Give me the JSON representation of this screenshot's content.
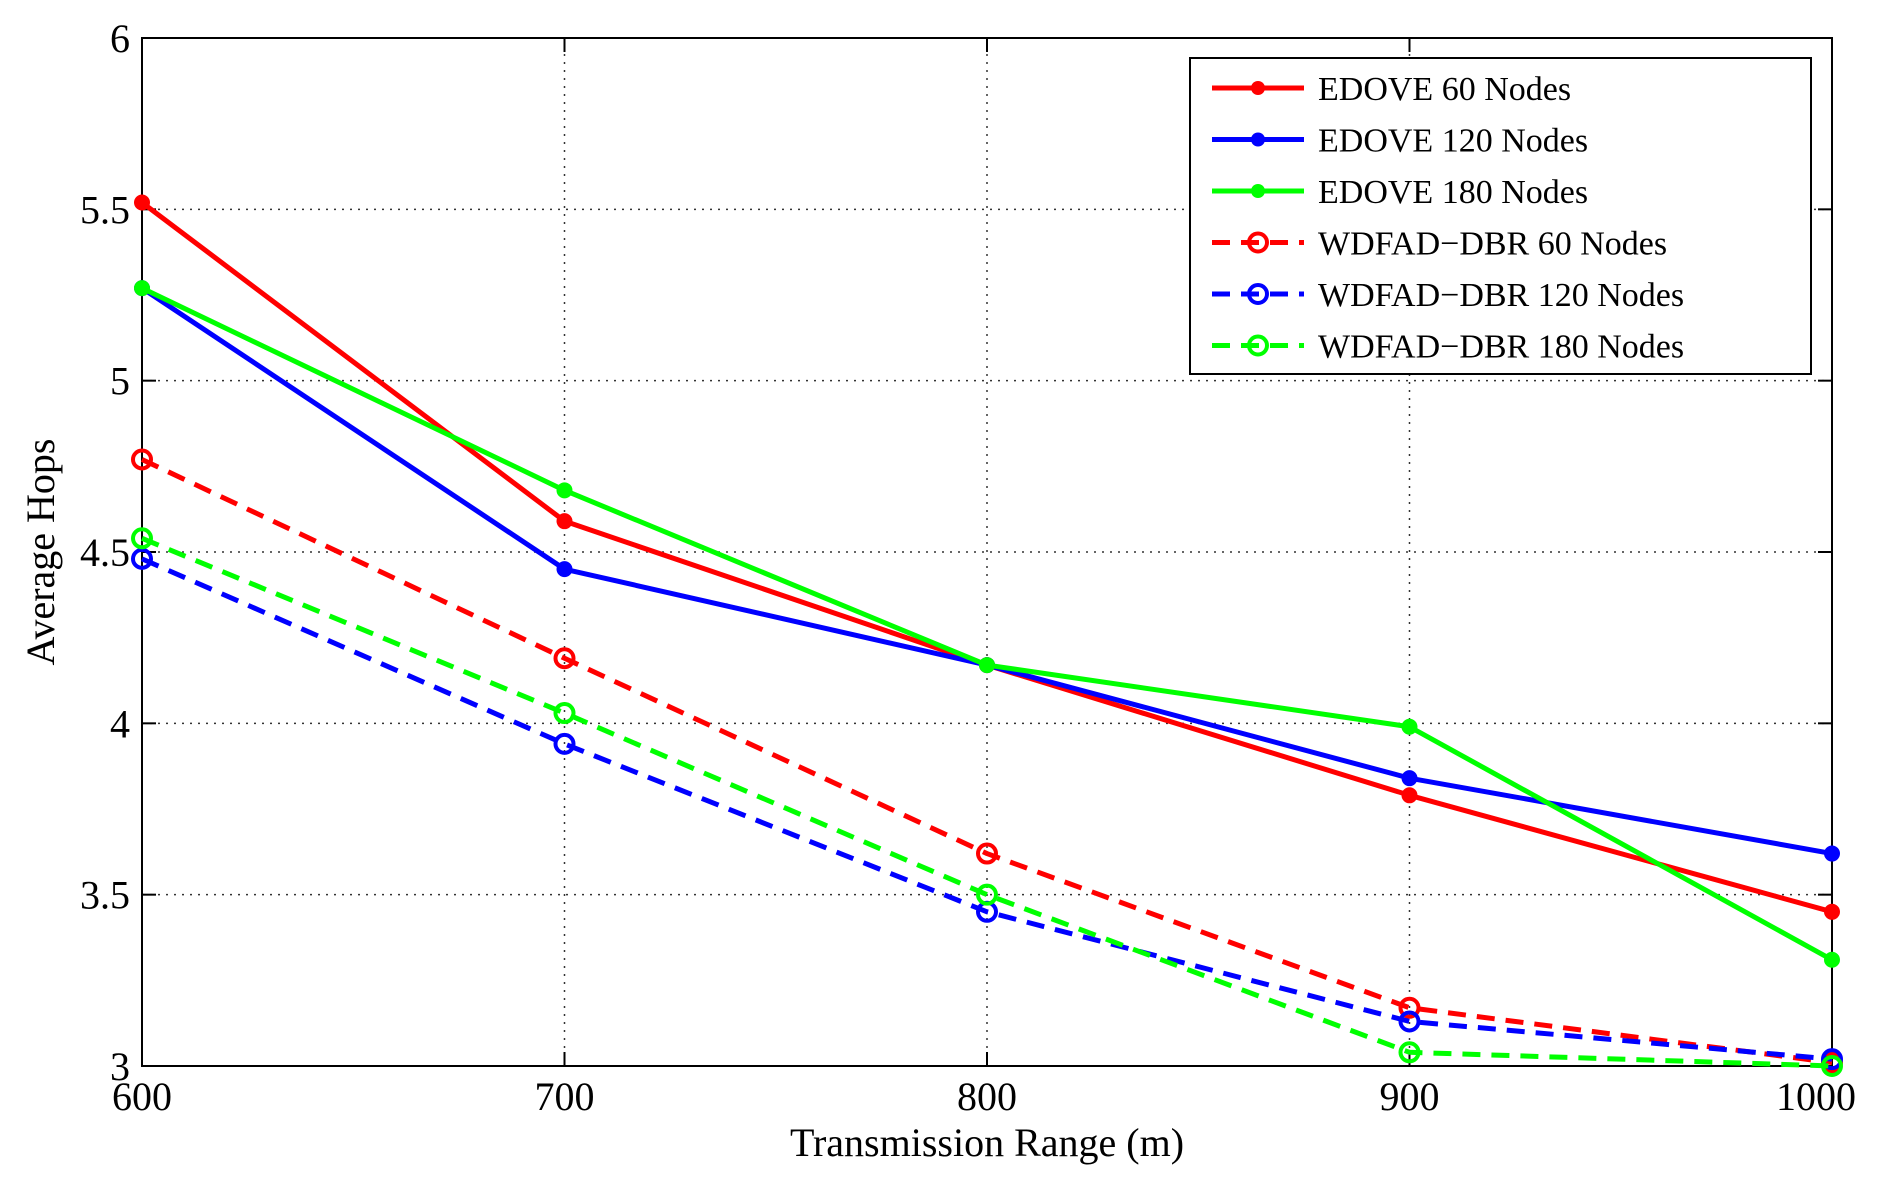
{
  "chart_data": {
    "type": "line",
    "title": "",
    "xlabel": "Transmission Range (m)",
    "ylabel": "Average Hops",
    "x": [
      600,
      700,
      800,
      900,
      1000
    ],
    "xlim": [
      600,
      1000
    ],
    "ylim": [
      3,
      6
    ],
    "xticks": [
      600,
      700,
      800,
      900,
      1000
    ],
    "xtick_labels": [
      "600",
      "700",
      "800",
      "900",
      "1000"
    ],
    "yticks": [
      3,
      3.5,
      4,
      4.5,
      5,
      5.5,
      6
    ],
    "ytick_labels": [
      "3",
      "3.5",
      "4",
      "4.5",
      "5",
      "5.5",
      "6"
    ],
    "grid": true,
    "legend_position": "top-right",
    "series": [
      {
        "name": "EDOVE 60 Nodes",
        "color": "#ff0000",
        "style": "solid",
        "marker": "dot",
        "values": [
          5.52,
          4.59,
          4.17,
          3.79,
          3.45
        ]
      },
      {
        "name": "EDOVE 120 Nodes",
        "color": "#0000ff",
        "style": "solid",
        "marker": "dot",
        "values": [
          5.27,
          4.45,
          4.17,
          3.84,
          3.62
        ]
      },
      {
        "name": "EDOVE 180 Nodes",
        "color": "#00ff00",
        "style": "solid",
        "marker": "dot",
        "values": [
          5.27,
          4.68,
          4.17,
          3.99,
          3.31
        ]
      },
      {
        "name": "WDFAD−DBR 60 Nodes",
        "color": "#ff0000",
        "style": "dashed",
        "marker": "circle",
        "values": [
          4.77,
          4.19,
          3.62,
          3.17,
          3.01
        ]
      },
      {
        "name": "WDFAD−DBR 120 Nodes",
        "color": "#0000ff",
        "style": "dashed",
        "marker": "circle",
        "values": [
          4.48,
          3.94,
          3.45,
          3.13,
          3.02
        ]
      },
      {
        "name": "WDFAD−DBR 180 Nodes",
        "color": "#00ff00",
        "style": "dashed",
        "marker": "circle",
        "values": [
          4.54,
          4.03,
          3.5,
          3.04,
          3.0
        ]
      }
    ]
  }
}
